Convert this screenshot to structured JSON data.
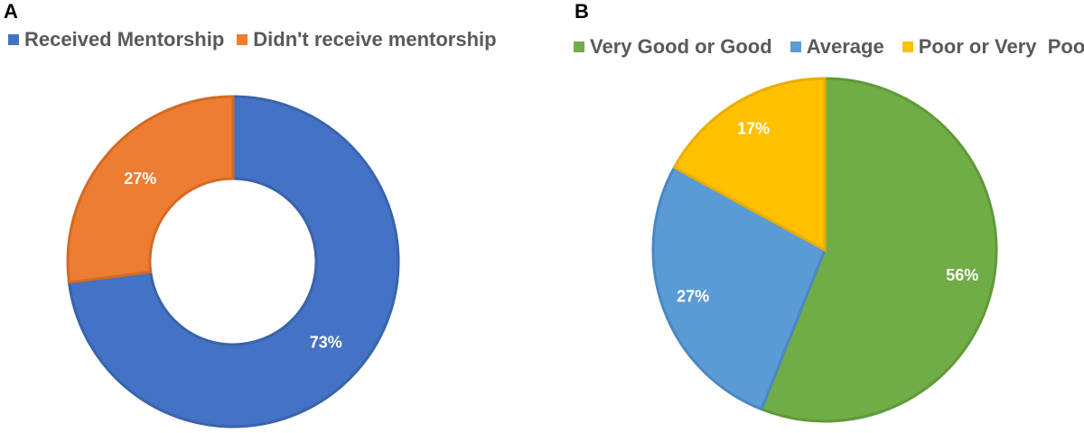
{
  "chart_data": [
    {
      "panel": "A",
      "type": "pie",
      "donut": true,
      "legend_position": "top-left",
      "categories": [
        "Received Mentorship",
        "Didn't receive mentorship"
      ],
      "values": [
        73,
        27
      ],
      "data_labels": [
        "73%",
        "27%"
      ],
      "colors": [
        "#4472C4",
        "#ED7D31"
      ],
      "border_colors": [
        "#3A63AD",
        "#D46A23"
      ]
    },
    {
      "panel": "B",
      "type": "pie",
      "donut": false,
      "legend_position": "top-right",
      "categories": [
        "Very Good or Good",
        "Average",
        "Poor or Very  Poor"
      ],
      "values": [
        56,
        27,
        17
      ],
      "data_labels": [
        "56%",
        "27%",
        "17%"
      ],
      "colors": [
        "#70AD47",
        "#5B9BD5",
        "#FFC000"
      ],
      "border_colors": [
        "#5E9A38",
        "#4A88C2",
        "#E8AE00"
      ]
    }
  ]
}
